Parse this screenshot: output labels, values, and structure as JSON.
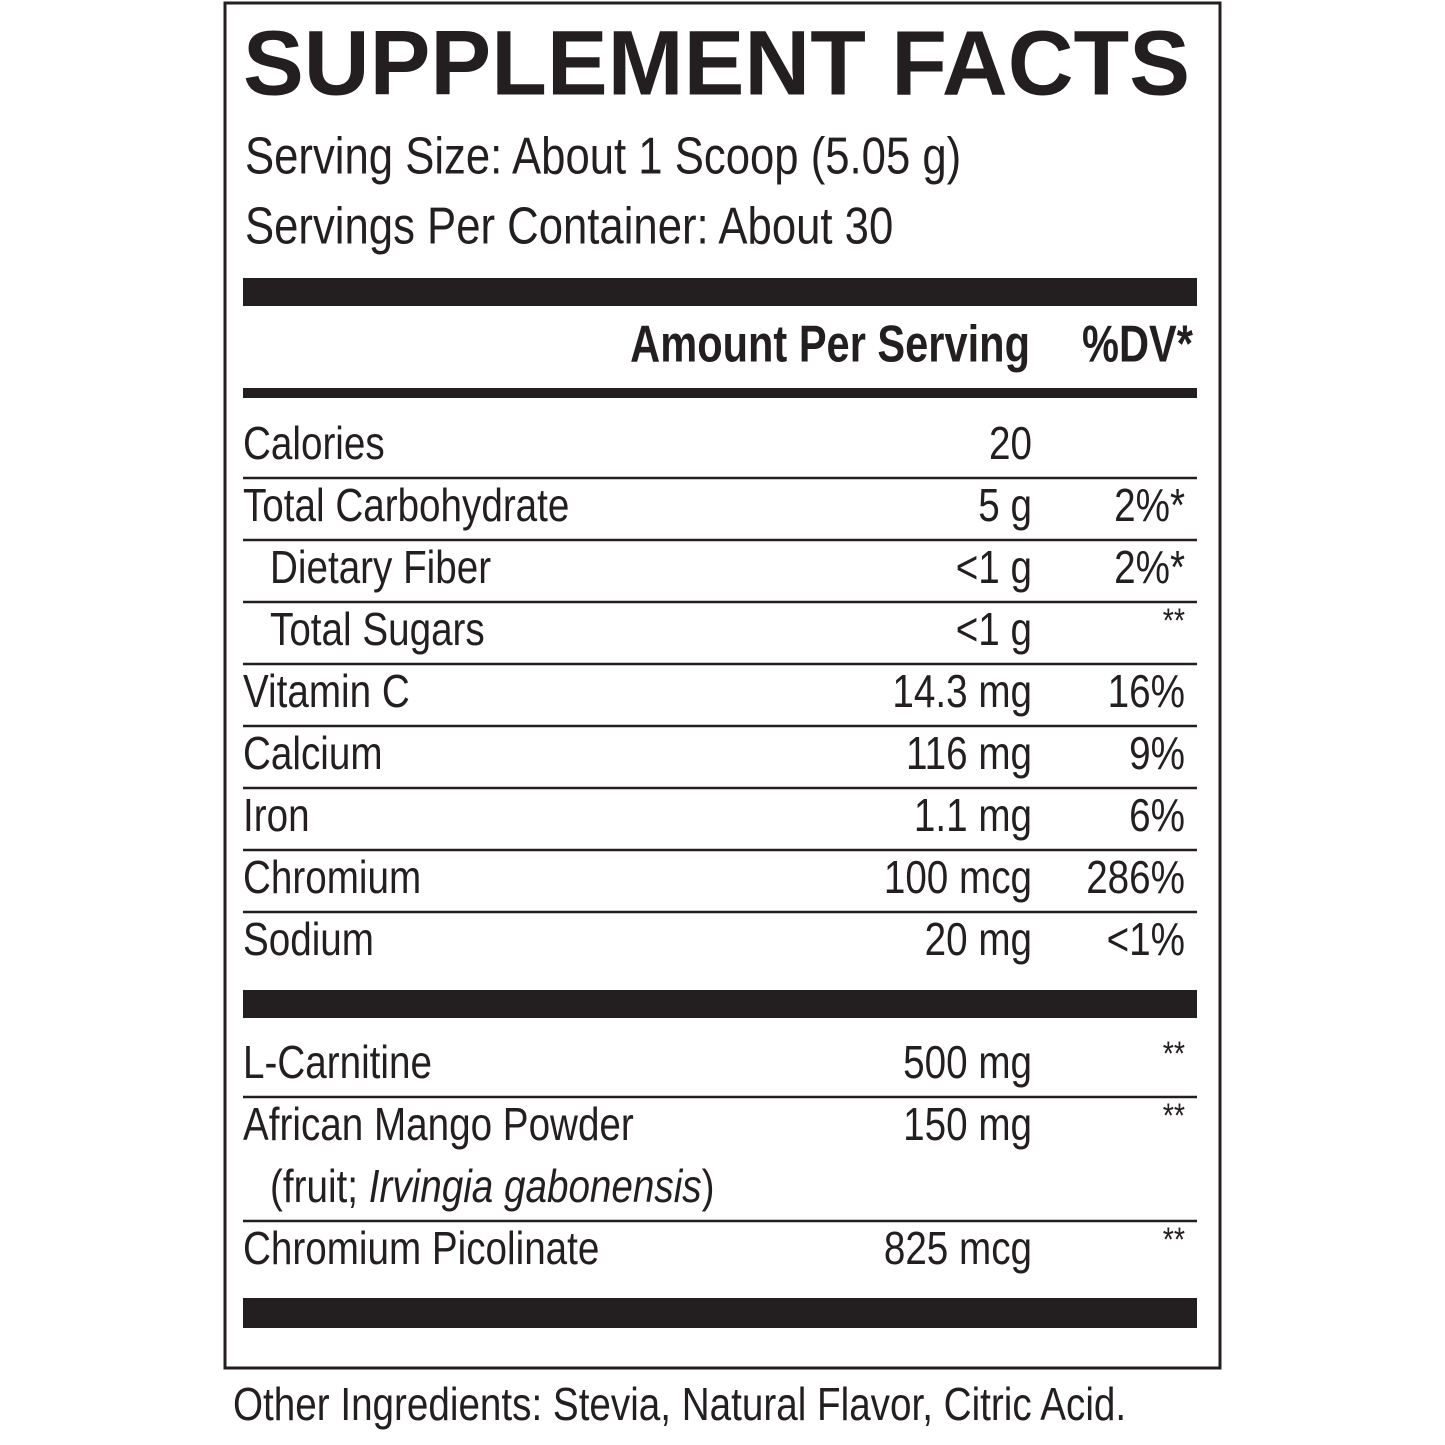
{
  "title": "SUPPLEMENT FACTS",
  "serving_size": "Serving Size: About 1 Scoop (5.05 g)",
  "servings_per_container": "Servings Per Container: About 30",
  "header": {
    "amount": "Amount Per Serving",
    "dv": "%DV*"
  },
  "sections": [
    {
      "rows": [
        {
          "name": "Calories",
          "amount": "20"
        },
        {
          "name": "Total Carbohydrate",
          "amount": "5 g",
          "dv": "2%*"
        },
        {
          "name": "Dietary Fiber",
          "amount": "<1 g",
          "dv": "2%*",
          "indent": true
        },
        {
          "name": "Total Sugars",
          "amount": "<1 g",
          "dv": "**",
          "indent": true
        },
        {
          "name": "Vitamin C",
          "amount": "14.3 mg",
          "dv": "16%"
        },
        {
          "name": "Calcium",
          "amount": "116 mg",
          "dv": "9%"
        },
        {
          "name": "Iron",
          "amount": "1.1 mg",
          "dv": "6%"
        },
        {
          "name": "Chromium",
          "amount": "100 mcg",
          "dv": "286%"
        },
        {
          "name": "Sodium",
          "amount": "20 mg",
          "dv": "<1%"
        }
      ]
    },
    {
      "rows": [
        {
          "name": "L-Carnitine",
          "amount": "500 mg",
          "dv": "**"
        },
        {
          "name": "African Mango Powder",
          "amount": "150 mg",
          "dv": "**",
          "note": {
            "prefix": "(fruit; ",
            "italic": "Irvingia gabonensis",
            "suffix": ")"
          }
        },
        {
          "name": "Chromium Picolinate",
          "amount": "825 mcg",
          "dv": "**"
        }
      ]
    }
  ],
  "other_ingredients": "Other Ingredients: Stevia, Natural Flavor, Citric Acid."
}
